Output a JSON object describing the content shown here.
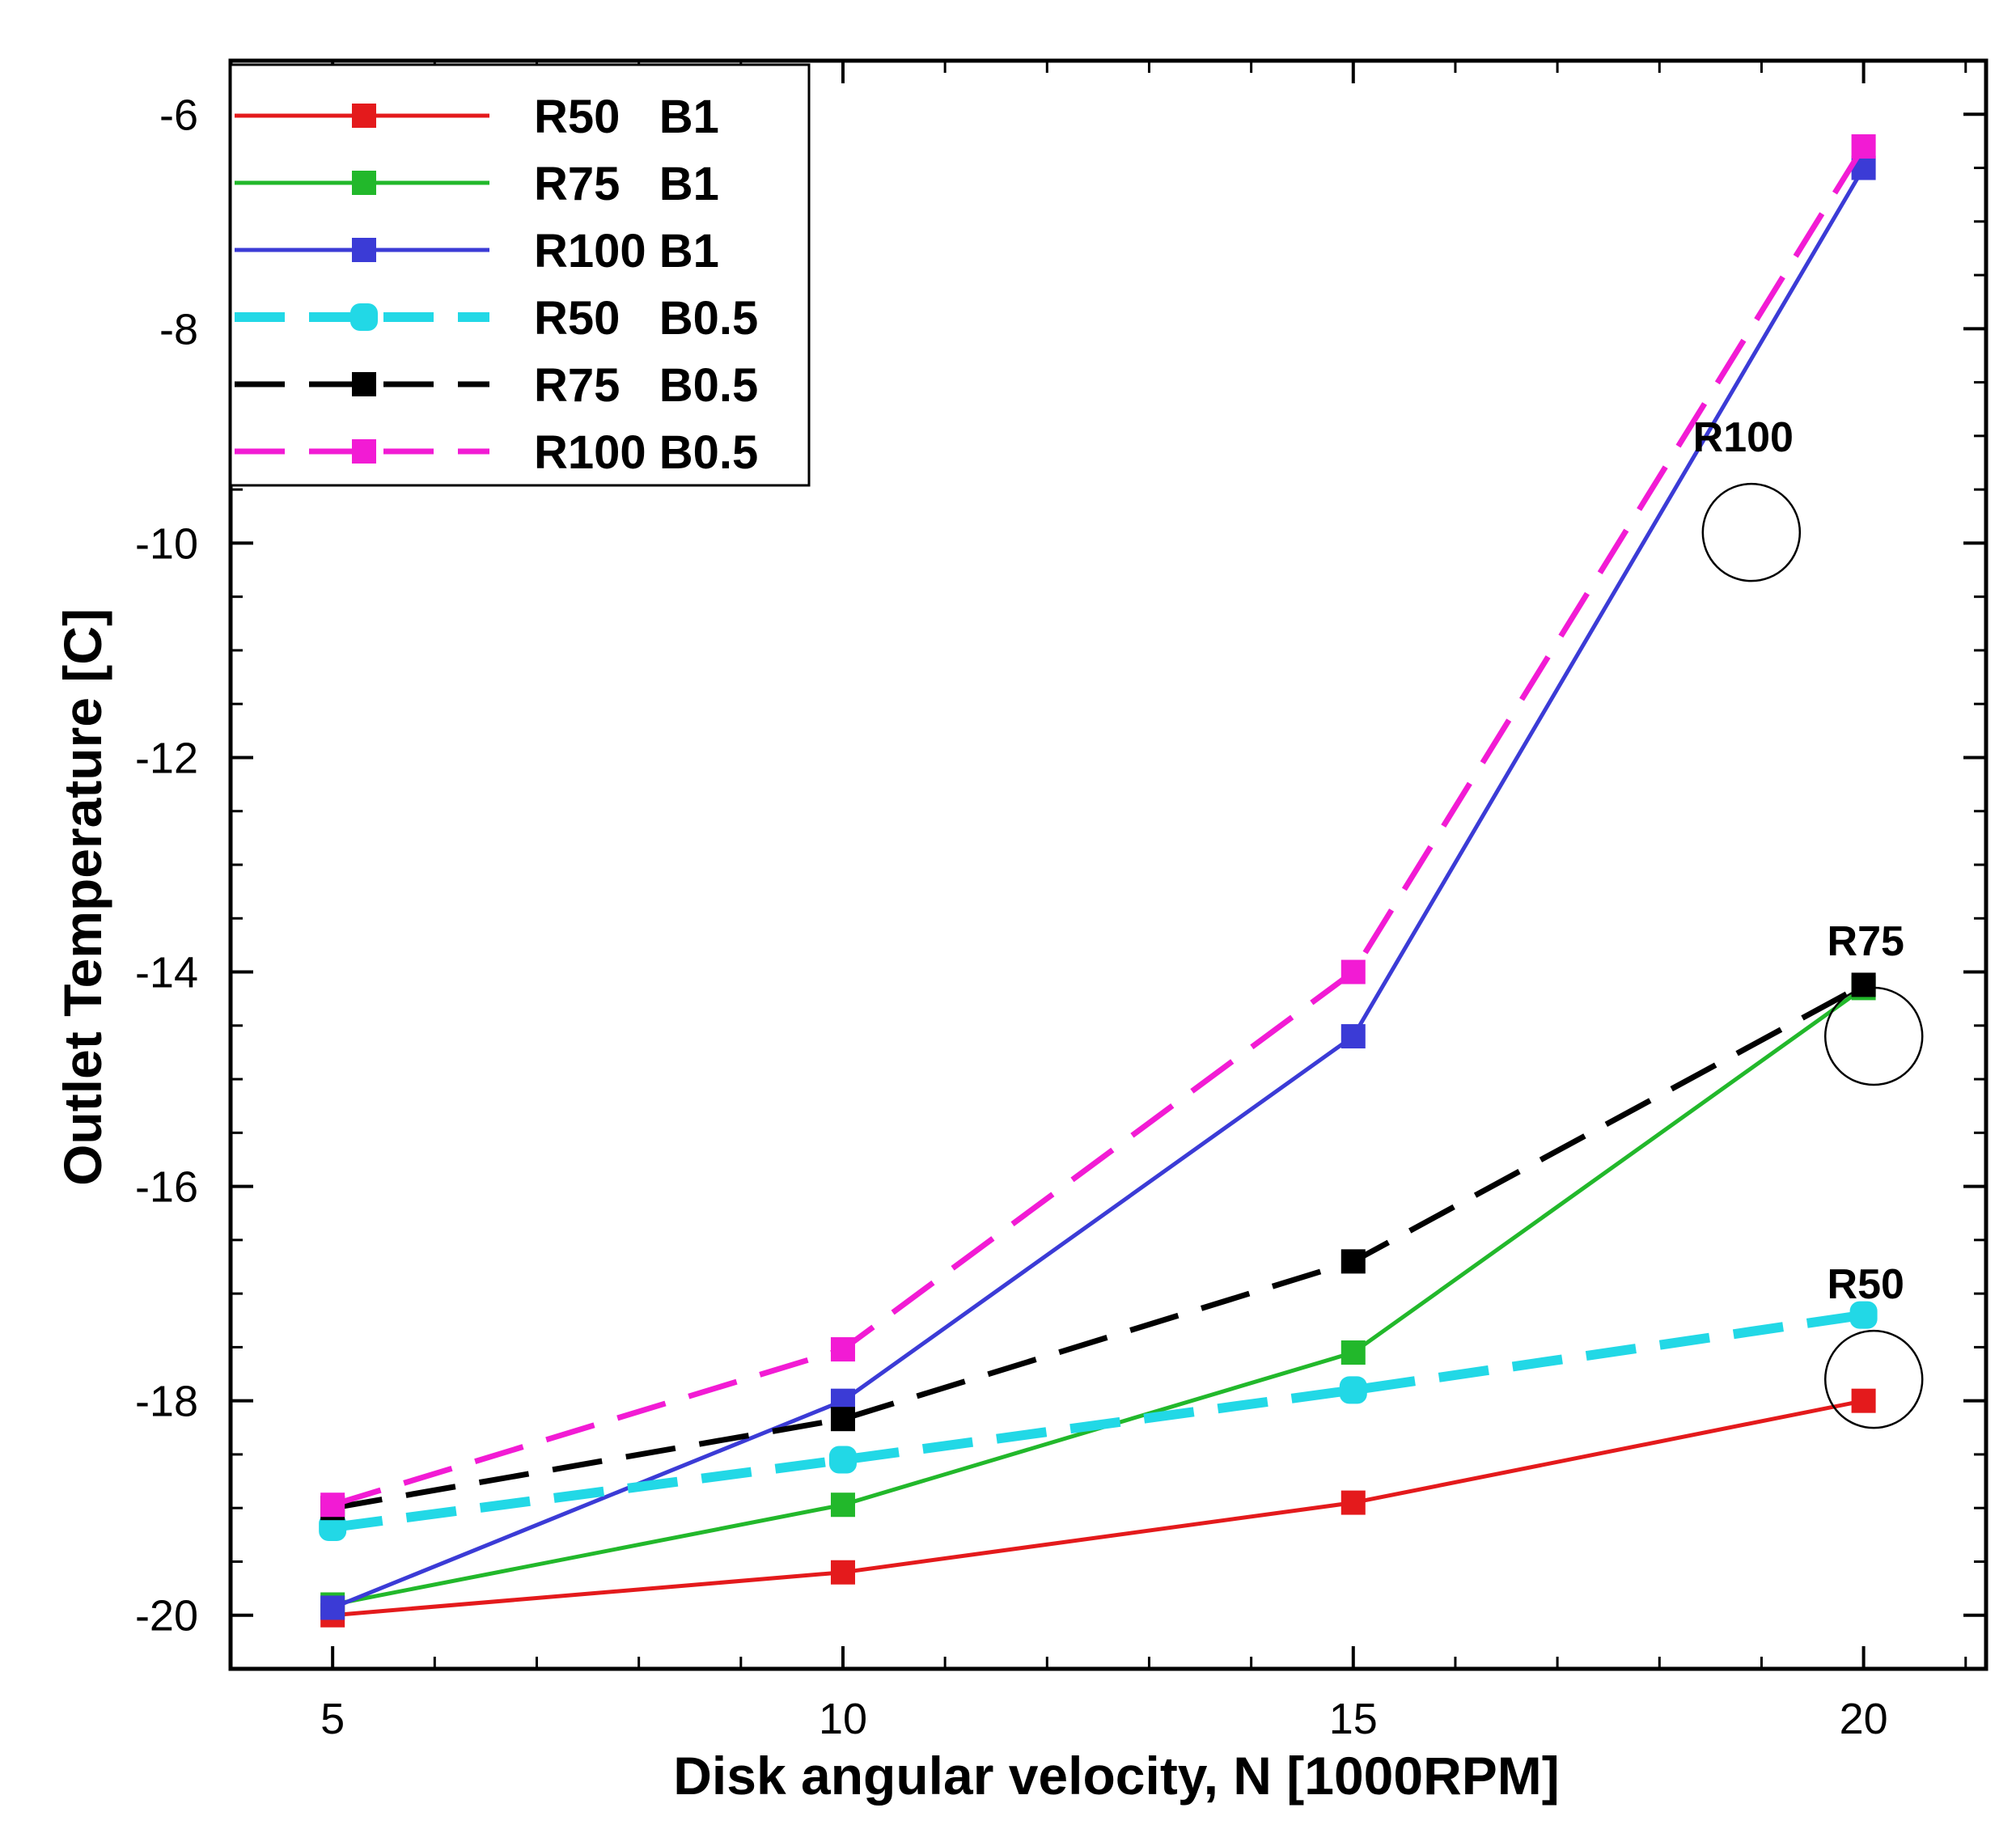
{
  "chart_data": {
    "type": "line",
    "xlabel": "Disk angular velocity, N [1000RPM]",
    "ylabel": "Outlet Temperature [C]",
    "xlim": [
      4,
      21.2
    ],
    "ylim": [
      -20.5,
      -5.5
    ],
    "xticks": [
      5,
      10,
      15,
      20
    ],
    "xtick_labels": [
      "5",
      "10",
      "15",
      "20"
    ],
    "yticks": [
      -20,
      -18,
      -16,
      -14,
      -12,
      -10,
      -8,
      -6
    ],
    "ytick_labels": [
      "-20",
      "-18",
      "-16",
      "-14",
      "-12",
      "-10",
      "-8",
      "-6"
    ],
    "x": [
      5,
      10,
      15,
      20
    ],
    "legend_position": "top-left",
    "series": [
      {
        "name": "R50   B1",
        "color": "#e41a1c",
        "dash": "solid",
        "values": [
          -20.0,
          -19.6,
          -18.95,
          -18.0
        ]
      },
      {
        "name": "R75   B1",
        "color": "#22b82b",
        "dash": "solid",
        "values": [
          -19.9,
          -18.97,
          -17.55,
          -14.15
        ]
      },
      {
        "name": "R100 B1",
        "color": "#3b3bd6",
        "dash": "solid",
        "values": [
          -19.93,
          -18.0,
          -14.6,
          -6.5
        ]
      },
      {
        "name": "R50   B0.5",
        "color": "#22d8e6",
        "dash": "dashed",
        "values": [
          -19.18,
          -18.55,
          -17.9,
          -17.2
        ]
      },
      {
        "name": "R75   B0.5",
        "color": "#000000",
        "dash": "dashed",
        "values": [
          -19.0,
          -18.17,
          -16.7,
          -14.12
        ]
      },
      {
        "name": "R100 B0.5",
        "color": "#f21bd4",
        "dash": "dashed",
        "values": [
          -18.97,
          -17.52,
          -14.0,
          -6.3
        ]
      }
    ],
    "annotations": [
      {
        "label": "R100",
        "x": 18.9,
        "y": -9.9
      },
      {
        "label": "R75",
        "x": 20.1,
        "y": -14.6
      },
      {
        "label": "R50",
        "x": 20.1,
        "y": -17.8
      }
    ]
  }
}
